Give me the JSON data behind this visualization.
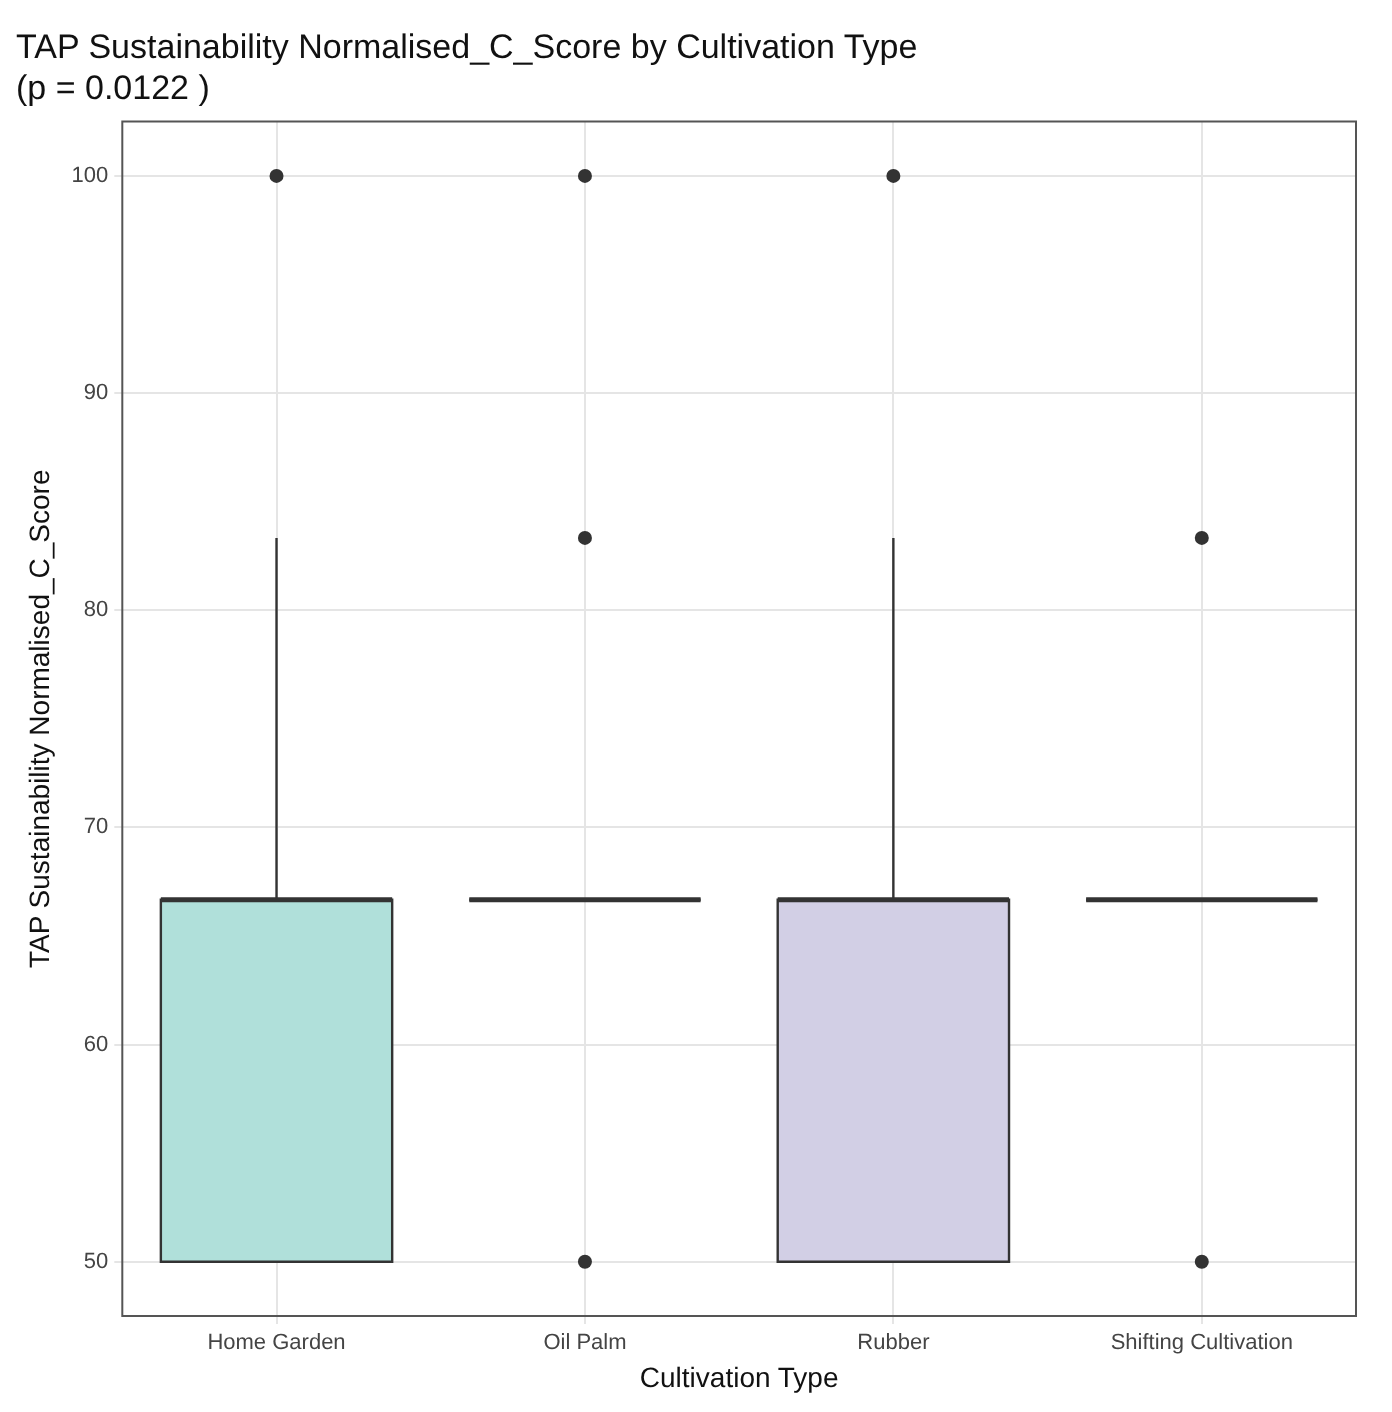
{
  "chart_data": {
    "type": "box",
    "title": "TAP Sustainability Normalised_C_Score by Cultivation Type",
    "subtitle": "(p = 0.0122 )",
    "xlabel": "Cultivation Type",
    "ylabel": "TAP Sustainability Normalised_C_Score",
    "categories": [
      "Home Garden",
      "Oil Palm",
      "Rubber",
      "Shifting Cultivation"
    ],
    "boxes": [
      {
        "low": 50,
        "q1": 50,
        "median": 66.67,
        "q3": 66.67,
        "high": 83.33,
        "outliers": [
          100
        ]
      },
      {
        "low": 66.67,
        "q1": 66.67,
        "median": 66.67,
        "q3": 66.67,
        "high": 66.67,
        "outliers": [
          50,
          83.33,
          100
        ]
      },
      {
        "low": 50,
        "q1": 50,
        "median": 66.67,
        "q3": 66.67,
        "high": 83.33,
        "outliers": [
          100
        ]
      },
      {
        "low": 66.67,
        "q1": 66.67,
        "median": 66.67,
        "q3": 66.67,
        "high": 66.67,
        "outliers": [
          50,
          83.33
        ]
      }
    ],
    "colors": [
      "#b0e0da",
      null,
      "#d2cfe5",
      null
    ],
    "ylim": [
      47.5,
      102.5
    ],
    "yticks": [
      50,
      60,
      70,
      80,
      90,
      100
    ],
    "grid": true,
    "legend": false
  }
}
